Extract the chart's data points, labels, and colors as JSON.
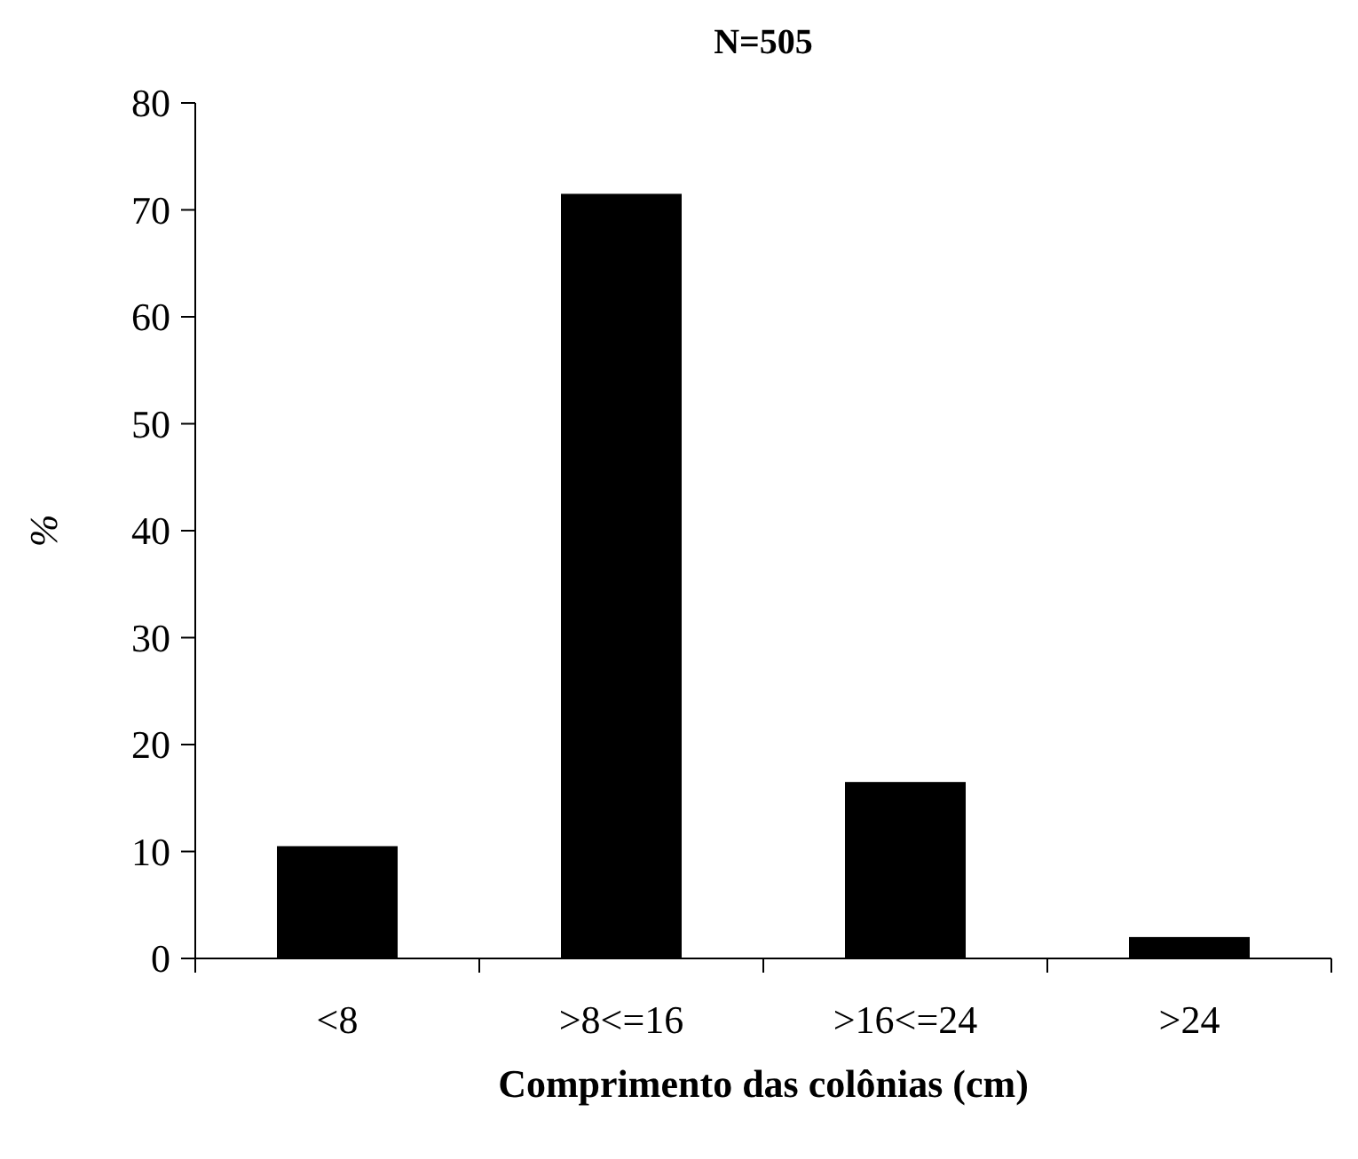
{
  "chart_data": {
    "type": "bar",
    "title": "N=505",
    "xlabel": "Comprimento das colônias (cm)",
    "ylabel": "%",
    "categories": [
      "<8",
      ">8<=16",
      ">16<=24",
      ">24"
    ],
    "values": [
      10.5,
      71.5,
      16.5,
      2
    ],
    "color": "#000000",
    "ylim": [
      0,
      80
    ],
    "yticks": [
      0,
      10,
      20,
      30,
      40,
      50,
      60,
      70,
      80
    ],
    "grid": false
  }
}
